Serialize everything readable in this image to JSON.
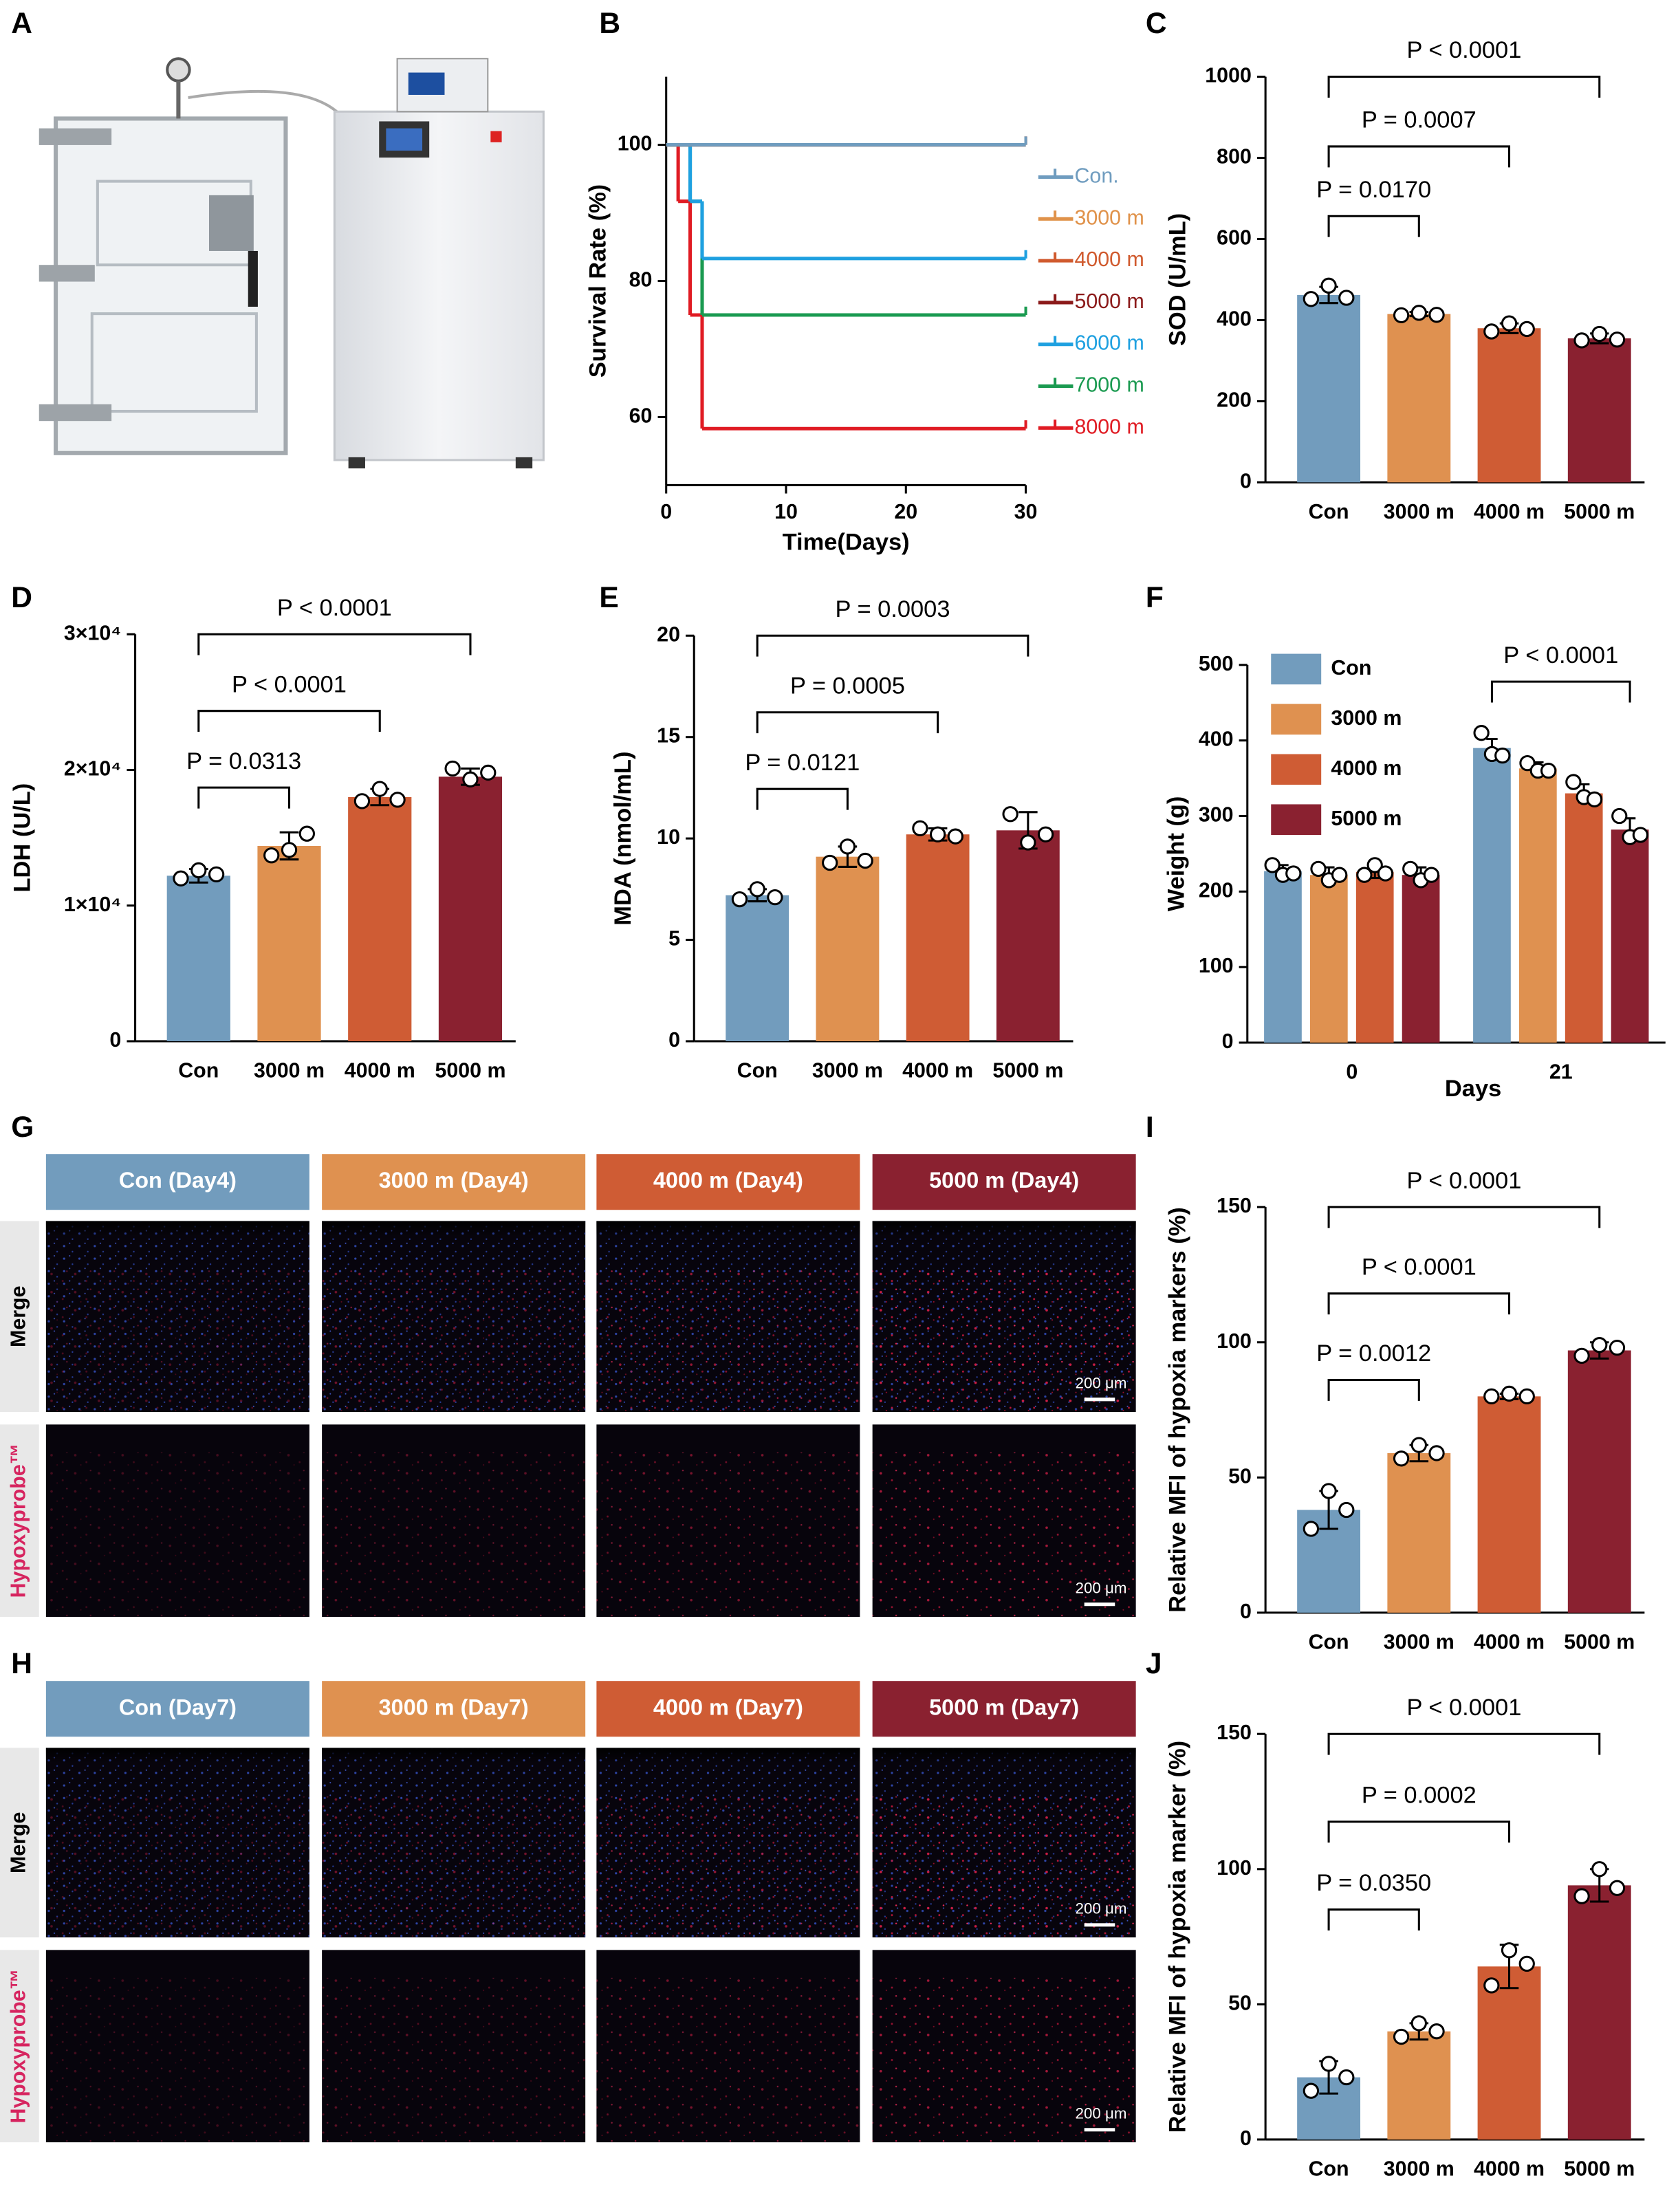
{
  "panel_labels": [
    "A",
    "B",
    "C",
    "D",
    "E",
    "F",
    "G",
    "H",
    "I",
    "J"
  ],
  "micrographs": [
    {
      "columns": [
        "Con (Day4)",
        "3000 m (Day4)",
        "4000 m (Day4)",
        "5000 m (Day4)"
      ],
      "rows": [
        "Merge",
        "Hypoxyprobe™"
      ],
      "scale_bar": "200 μm",
      "colors": [
        "#729cbd",
        "#df9150",
        "#cf5c34",
        "#8a2130"
      ]
    },
    {
      "columns": [
        "Con (Day7)",
        "3000 m (Day7)",
        "4000 m (Day7)",
        "5000 m (Day7)"
      ],
      "rows": [
        "Merge",
        "Hypoxyprobe™"
      ],
      "scale_bar": "200 μm",
      "colors": [
        "#729cbd",
        "#df9150",
        "#cf5c34",
        "#8a2130"
      ]
    }
  ],
  "chart_data": [
    {
      "type": "line",
      "xlabel": "Time(Days)",
      "ylabel": "Survival Rate (%)",
      "drawstyle": "steps-post",
      "x": [
        0,
        1,
        2,
        3,
        30
      ],
      "xlim": [
        0,
        30
      ],
      "xticks": [
        0,
        10,
        20,
        30
      ],
      "ylim": [
        50,
        110
      ],
      "yticks": [
        60,
        80,
        100
      ],
      "series": [
        {
          "name": "Con.",
          "color": "#6f9cbf",
          "values": [
            100,
            100,
            100,
            100,
            100
          ]
        },
        {
          "name": "3000 m",
          "color": "#e0924a",
          "values": [
            100,
            100,
            100,
            100,
            100
          ]
        },
        {
          "name": "4000 m",
          "color": "#d05a2e",
          "values": [
            100,
            100,
            100,
            100,
            100
          ]
        },
        {
          "name": "5000 m",
          "color": "#8b1a1a",
          "values": [
            100,
            100,
            100,
            100,
            100
          ]
        },
        {
          "name": "6000 m",
          "color": "#1ea0e0",
          "values": [
            100,
            100,
            91.7,
            83.3,
            83.3
          ]
        },
        {
          "name": "7000 m",
          "color": "#1a9a50",
          "values": [
            100,
            100,
            91.7,
            75,
            75
          ]
        },
        {
          "name": "8000 m",
          "color": "#e01b23",
          "values": [
            100,
            91.7,
            75,
            58.3,
            58.3
          ]
        }
      ]
    },
    {
      "type": "bar",
      "ylabel": "SOD (U/mL)",
      "categories": [
        "Con",
        "3000 m",
        "4000 m",
        "5000 m"
      ],
      "values": [
        462,
        415,
        380,
        355
      ],
      "errors": [
        20,
        5,
        12,
        12
      ],
      "points": [
        [
          452,
          485,
          455
        ],
        [
          412,
          418,
          413
        ],
        [
          372,
          392,
          378
        ],
        [
          350,
          366,
          352
        ]
      ],
      "colors": [
        "#729cbd",
        "#df9150",
        "#cf5c34",
        "#8a2130"
      ],
      "ylim": [
        0,
        1000
      ],
      "yticks": [
        0,
        200,
        400,
        600,
        800,
        1000
      ],
      "annotations": [
        "P = 0.0170",
        "P = 0.0007",
        "P < 0.0001"
      ]
    },
    {
      "type": "bar",
      "ylabel": "LDH (U/L)",
      "categories": [
        "Con",
        "3000 m",
        "4000 m",
        "5000 m"
      ],
      "values": [
        12200,
        14400,
        18000,
        19500
      ],
      "errors": [
        500,
        1000,
        600,
        600
      ],
      "points": [
        [
          12000,
          12600,
          12300
        ],
        [
          13700,
          14100,
          15300
        ],
        [
          17700,
          18600,
          17800
        ],
        [
          20100,
          19300,
          19800
        ]
      ],
      "colors": [
        "#729cbd",
        "#df9150",
        "#cf5c34",
        "#8a2130"
      ],
      "ylim": [
        0,
        30000
      ],
      "yticks": [
        0,
        {
          "value": 10000,
          "label": "1×10⁴"
        },
        {
          "value": 20000,
          "label": "2×10⁴"
        },
        {
          "value": 30000,
          "label": "3×10⁴"
        }
      ],
      "annotations": [
        "P = 0.0313",
        "P < 0.0001",
        "P < 0.0001"
      ]
    },
    {
      "type": "bar",
      "ylabel": "MDA (nmol/mL)",
      "categories": [
        "Con",
        "3000 m",
        "4000 m",
        "5000 m"
      ],
      "values": [
        7.2,
        9.1,
        10.2,
        10.4
      ],
      "errors": [
        0.3,
        0.5,
        0.3,
        0.9
      ],
      "points": [
        [
          7.0,
          7.5,
          7.1
        ],
        [
          8.8,
          9.6,
          8.9
        ],
        [
          10.5,
          10.2,
          10.1
        ],
        [
          11.2,
          9.8,
          10.2
        ]
      ],
      "colors": [
        "#729cbd",
        "#df9150",
        "#cf5c34",
        "#8a2130"
      ],
      "ylim": [
        0,
        20
      ],
      "yticks": [
        0,
        5,
        10,
        15,
        20
      ],
      "annotations": [
        "P = 0.0121",
        "P = 0.0005",
        "P = 0.0003"
      ]
    },
    {
      "type": "bar",
      "xlabel": "Days",
      "ylabel": "Weight (g)",
      "categories": [
        "0",
        "21"
      ],
      "legend": "upper left",
      "series": [
        {
          "name": "Con",
          "color": "#729cbd",
          "values": [
            227,
            390
          ],
          "errors": [
            8,
            12
          ],
          "points": [
            [
              235,
              222,
              224
            ],
            [
              410,
              382,
              380
            ]
          ]
        },
        {
          "name": "3000 m",
          "color": "#df9150",
          "values": [
            222,
            363
          ],
          "errors": [
            10,
            8
          ],
          "points": [
            [
              230,
              215,
              222
            ],
            [
              370,
              360,
              360
            ]
          ]
        },
        {
          "name": "4000 m",
          "color": "#cf5c34",
          "values": [
            226,
            330
          ],
          "errors": [
            8,
            12
          ],
          "points": [
            [
              222,
              235,
              224
            ],
            [
              345,
              325,
              322
            ]
          ]
        },
        {
          "name": "5000 m",
          "color": "#8a2130",
          "values": [
            222,
            282
          ],
          "errors": [
            10,
            15
          ],
          "points": [
            [
              230,
              215,
              222
            ],
            [
              300,
              272,
              275
            ]
          ]
        }
      ],
      "ylim": [
        0,
        500
      ],
      "yticks": [
        0,
        100,
        200,
        300,
        400,
        500
      ],
      "annotations": [
        "P < 0.0001"
      ]
    },
    {
      "type": "bar",
      "ylabel": "Relative MFI of hypoxia markers (%)",
      "categories": [
        "Con",
        "3000 m",
        "4000 m",
        "5000 m"
      ],
      "values": [
        38,
        59,
        80,
        97
      ],
      "errors": [
        7,
        3,
        1,
        3
      ],
      "points": [
        [
          31,
          45,
          38
        ],
        [
          57,
          62,
          59
        ],
        [
          80,
          81,
          80
        ],
        [
          95,
          99,
          98
        ]
      ],
      "colors": [
        "#729cbd",
        "#df9150",
        "#cf5c34",
        "#8a2130"
      ],
      "ylim": [
        0,
        150
      ],
      "yticks": [
        0,
        50,
        100,
        150
      ],
      "annotations": [
        "P = 0.0012",
        "P < 0.0001",
        "P < 0.0001"
      ]
    },
    {
      "type": "bar",
      "ylabel": "Relative MFI of hypoxia marker (%)",
      "categories": [
        "Con",
        "3000 m",
        "4000 m",
        "5000 m"
      ],
      "values": [
        23,
        40,
        64,
        94
      ],
      "errors": [
        6,
        3,
        8,
        6
      ],
      "points": [
        [
          18,
          28,
          23
        ],
        [
          38,
          43,
          40
        ],
        [
          57,
          70,
          65
        ],
        [
          90,
          100,
          93
        ]
      ],
      "colors": [
        "#729cbd",
        "#df9150",
        "#cf5c34",
        "#8a2130"
      ],
      "ylim": [
        0,
        150
      ],
      "yticks": [
        0,
        50,
        100,
        150
      ],
      "annotations": [
        "P = 0.0350",
        "P = 0.0002",
        "P < 0.0001"
      ]
    }
  ]
}
